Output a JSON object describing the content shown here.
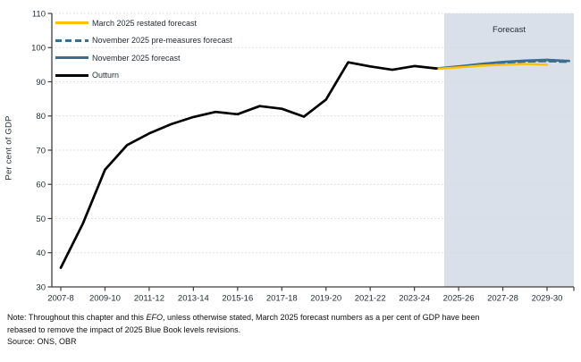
{
  "chart_data": {
    "type": "line",
    "title": "",
    "xlabel": "",
    "ylabel": "Per cent of GDP",
    "ylim": [
      30,
      110
    ],
    "ytick_step": 10,
    "grid": "horizontal-dotted",
    "legend_position": "top-left-inside",
    "categories": [
      "2007-8",
      "2008-9",
      "2009-10",
      "2010-11",
      "2011-12",
      "2012-13",
      "2013-14",
      "2014-15",
      "2015-16",
      "2016-17",
      "2017-18",
      "2018-19",
      "2019-20",
      "2020-21",
      "2021-22",
      "2022-23",
      "2023-24",
      "2024-25",
      "2025-26",
      "2026-27",
      "2027-28",
      "2028-29",
      "2029-30",
      "2030-31"
    ],
    "xtick_labels": [
      "2007-8",
      "2009-10",
      "2011-12",
      "2013-14",
      "2015-16",
      "2017-18",
      "2019-20",
      "2021-22",
      "2023-24",
      "2025-26",
      "2027-28",
      "2029-30"
    ],
    "series": [
      {
        "name": "Outturn",
        "color": "#000000",
        "dash": "none",
        "start": 0,
        "values": [
          35.6,
          48.5,
          64.3,
          71.5,
          74.9,
          77.6,
          79.7,
          81.2,
          80.5,
          82.9,
          82.1,
          79.8,
          84.8,
          95.7,
          94.5,
          93.5,
          94.6,
          93.9
        ]
      },
      {
        "name": "March 2025 restated forecast",
        "color": "#FFC000",
        "dash": "none",
        "start": 17,
        "values": [
          93.8,
          94.2,
          94.7,
          95.0,
          95.2,
          95.0
        ]
      },
      {
        "name": "November 2025 pre-measures forecast",
        "color": "#3D6E8F",
        "dash": "7 4.5",
        "start": 17,
        "values": [
          93.9,
          94.4,
          95.0,
          95.5,
          95.9,
          96.0,
          95.8
        ]
      },
      {
        "name": "November 2025 forecast",
        "color": "#3D6E8F",
        "dash": "none",
        "start": 17,
        "values": [
          93.9,
          94.5,
          95.2,
          95.8,
          96.2,
          96.4,
          96.1
        ]
      }
    ],
    "forecast_label": "Forecast",
    "forecast_region": {
      "start_year_index": 17.35,
      "fill": "#DAE0E9"
    },
    "colors": {
      "axis": "#3F3F3F",
      "grid": "#D8D8D8",
      "tick_text": "#1F2A33"
    }
  },
  "note": {
    "line1_prefix": "Note: Throughout this chapter and this ",
    "line1_efo": "EFO",
    "line1_suffix": ", unless otherwise stated, March 2025 forecast numbers as a per cent of GDP have been",
    "line2": "rebased to remove the impact of 2025 Blue Book levels revisions.",
    "source": "Source: ONS, OBR"
  }
}
